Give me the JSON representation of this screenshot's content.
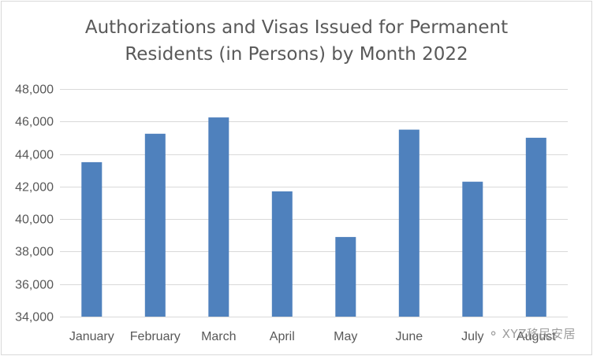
{
  "chart_data": {
    "type": "bar",
    "title": "Authorizations and Visas Issued for Permanent Residents (in Persons) by Month 2022",
    "title_lines": [
      "Authorizations and Visas Issued for Permanent",
      "Residents (in Persons) by Month 2022"
    ],
    "categories": [
      "January",
      "February",
      "March",
      "April",
      "May",
      "June",
      "July",
      "August"
    ],
    "values": [
      43500,
      45250,
      46250,
      41700,
      38900,
      45500,
      42300,
      45000
    ],
    "ylim": [
      34000,
      48000
    ],
    "yticks": [
      "34,000",
      "36,000",
      "38,000",
      "40,000",
      "42,000",
      "44,000",
      "46,000",
      "48,000"
    ],
    "ytick_values": [
      34000,
      36000,
      38000,
      40000,
      42000,
      44000,
      46000,
      48000
    ],
    "xlabel": "",
    "ylabel": "",
    "grid": true,
    "legend": "none",
    "bar_color": "#4f81bd",
    "grid_color": "#d9d9d9",
    "text_color": "#595959"
  },
  "watermark": {
    "icon": "chat-bubble-icon",
    "text": "XYZ移民安居"
  }
}
